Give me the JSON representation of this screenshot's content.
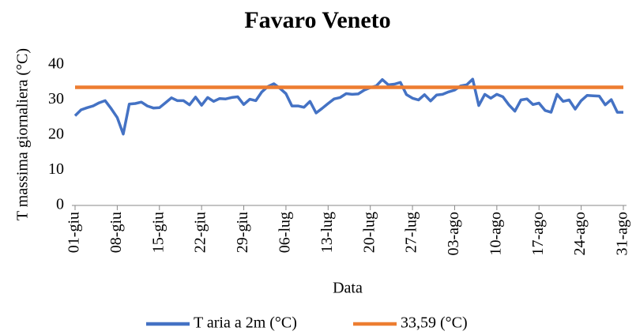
{
  "chart_data": {
    "type": "line",
    "title": "Favaro Veneto",
    "x_label": "Data",
    "y_label": "T massima  giornaliera  (°C)",
    "categories": [
      "01-giu",
      null,
      null,
      null,
      null,
      null,
      null,
      "08-giu",
      null,
      null,
      null,
      null,
      null,
      null,
      "15-giu",
      null,
      null,
      null,
      null,
      null,
      null,
      "22-giu",
      null,
      null,
      null,
      null,
      null,
      null,
      "29-giu",
      null,
      null,
      null,
      null,
      null,
      null,
      "06-lug",
      null,
      null,
      null,
      null,
      null,
      null,
      "13-lug",
      null,
      null,
      null,
      null,
      null,
      null,
      "20-lug",
      null,
      null,
      null,
      null,
      null,
      null,
      "27-lug",
      null,
      null,
      null,
      null,
      null,
      null,
      "03-ago",
      null,
      null,
      null,
      null,
      null,
      null,
      "10-ago",
      null,
      null,
      null,
      null,
      null,
      null,
      "17-ago",
      null,
      null,
      null,
      null,
      null,
      null,
      "24-ago",
      null,
      null,
      null,
      null,
      null,
      null,
      "31-ago"
    ],
    "series": [
      {
        "name": "T aria a 2m (°C)",
        "color": "#4472c4",
        "values": [
          25.5,
          27.2,
          27.8,
          28.3,
          29.2,
          29.8,
          27.5,
          25.0,
          20.3,
          28.8,
          29.0,
          29.4,
          28.3,
          27.7,
          27.8,
          29.2,
          30.6,
          29.8,
          29.8,
          28.6,
          30.8,
          28.5,
          30.7,
          29.6,
          30.4,
          30.3,
          30.7,
          30.9,
          28.7,
          30.2,
          29.8,
          32.3,
          33.8,
          34.6,
          33.3,
          31.8,
          28.3,
          28.3,
          27.9,
          29.6,
          26.3,
          27.6,
          29.0,
          30.3,
          30.7,
          31.8,
          31.6,
          31.7,
          32.8,
          33.5,
          34.0,
          35.8,
          34.3,
          34.5,
          35.0,
          31.5,
          30.5,
          30.0,
          31.5,
          29.7,
          31.4,
          31.6,
          32.3,
          32.8,
          34.0,
          34.3,
          35.9,
          28.4,
          31.6,
          30.5,
          31.6,
          30.9,
          28.6,
          26.8,
          30.0,
          30.3,
          28.7,
          29.1,
          27.0,
          26.5,
          31.6,
          29.6,
          30.0,
          27.4,
          29.8,
          31.3,
          31.2,
          31.1,
          28.6,
          30.1,
          26.5,
          26.5
        ]
      },
      {
        "name": "33,59 (°C)",
        "color": "#ed7d31",
        "values": [
          33.59,
          33.59,
          33.59,
          33.59,
          33.59,
          33.59,
          33.59,
          33.59,
          33.59,
          33.59,
          33.59,
          33.59,
          33.59,
          33.59,
          33.59,
          33.59,
          33.59,
          33.59,
          33.59,
          33.59,
          33.59,
          33.59,
          33.59,
          33.59,
          33.59,
          33.59,
          33.59,
          33.59,
          33.59,
          33.59,
          33.59,
          33.59,
          33.59,
          33.59,
          33.59,
          33.59,
          33.59,
          33.59,
          33.59,
          33.59,
          33.59,
          33.59,
          33.59,
          33.59,
          33.59,
          33.59,
          33.59,
          33.59,
          33.59,
          33.59,
          33.59,
          33.59,
          33.59,
          33.59,
          33.59,
          33.59,
          33.59,
          33.59,
          33.59,
          33.59,
          33.59,
          33.59,
          33.59,
          33.59,
          33.59,
          33.59,
          33.59,
          33.59,
          33.59,
          33.59,
          33.59,
          33.59,
          33.59,
          33.59,
          33.59,
          33.59,
          33.59,
          33.59,
          33.59,
          33.59,
          33.59,
          33.59,
          33.59,
          33.59,
          33.59,
          33.59,
          33.59,
          33.59,
          33.59,
          33.59,
          33.59,
          33.59
        ]
      }
    ],
    "ylim": [
      0,
      40
    ],
    "yticks": [
      0,
      10,
      20,
      30,
      40
    ],
    "grid": false
  }
}
